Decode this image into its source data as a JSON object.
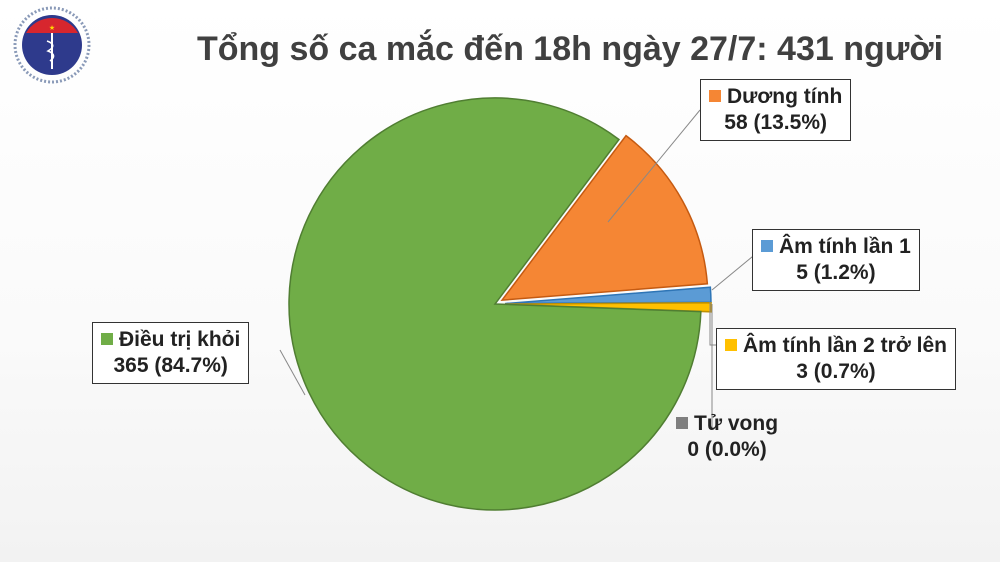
{
  "logo": {
    "text_top": "BỘ Y TẾ",
    "text_bottom": "MINISTRY OF HEALTH"
  },
  "chart_data": {
    "type": "pie",
    "title": "Tổng số ca mắc đến 18h ngày 27/7: 431 người",
    "total": 431,
    "slices": [
      {
        "name": "Dương tính",
        "value": 58,
        "percent": "13.5%",
        "label_value": "58 (13.5%)",
        "color": "#f58634",
        "exploded": true
      },
      {
        "name": "Âm tính lần 1",
        "value": 5,
        "percent": "1.2%",
        "label_value": "5 (1.2%)",
        "color": "#5b9bd5",
        "exploded": true
      },
      {
        "name": "Âm tính lần 2 trở lên",
        "value": 3,
        "percent": "0.7%",
        "label_value": "3 (0.7%)",
        "color": "#ffc000",
        "exploded": true
      },
      {
        "name": "Tử vong",
        "value": 0,
        "percent": "0.0%",
        "label_value": "0 (0.0%)",
        "color": "#7f7f7f",
        "exploded": false
      },
      {
        "name": "Điều trị khỏi",
        "value": 365,
        "percent": "84.7%",
        "label_value": "365 (84.7%)",
        "color": "#70ad47",
        "exploded": false
      }
    ]
  }
}
